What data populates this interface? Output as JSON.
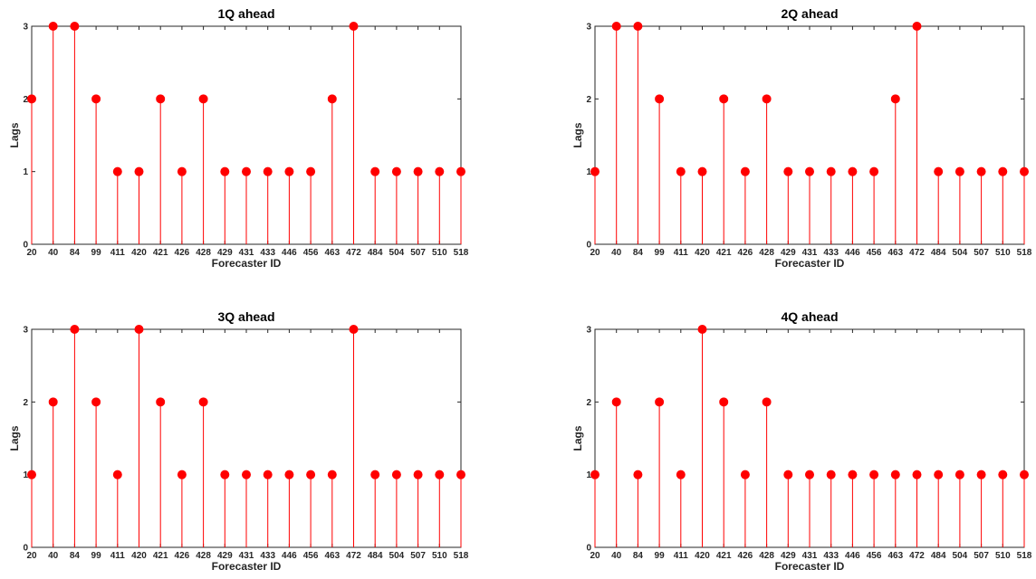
{
  "chart_data": [
    {
      "type": "stem",
      "title": "1Q ahead",
      "xlabel": "Forecaster ID",
      "ylabel": "Lags",
      "categories": [
        "20",
        "40",
        "84",
        "99",
        "411",
        "420",
        "421",
        "426",
        "428",
        "429",
        "431",
        "433",
        "446",
        "456",
        "463",
        "472",
        "484",
        "504",
        "507",
        "510",
        "518"
      ],
      "values": [
        2,
        3,
        3,
        2,
        1,
        1,
        2,
        1,
        2,
        1,
        1,
        1,
        1,
        1,
        2,
        3,
        1,
        1,
        1,
        1,
        1
      ],
      "ylim": [
        0,
        3
      ],
      "yticks": [
        "0",
        "1",
        "2",
        "3"
      ],
      "grid": false,
      "color": "#ff0000"
    },
    {
      "type": "stem",
      "title": "2Q ahead",
      "xlabel": "Forecaster ID",
      "ylabel": "Lags",
      "categories": [
        "20",
        "40",
        "84",
        "99",
        "411",
        "420",
        "421",
        "426",
        "428",
        "429",
        "431",
        "433",
        "446",
        "456",
        "463",
        "472",
        "484",
        "504",
        "507",
        "510",
        "518"
      ],
      "values": [
        1,
        3,
        3,
        2,
        1,
        1,
        2,
        1,
        2,
        1,
        1,
        1,
        1,
        1,
        2,
        3,
        1,
        1,
        1,
        1,
        1
      ],
      "ylim": [
        0,
        3
      ],
      "yticks": [
        "0",
        "1",
        "2",
        "3"
      ],
      "grid": false,
      "color": "#ff0000"
    },
    {
      "type": "stem",
      "title": "3Q ahead",
      "xlabel": "Forecaster ID",
      "ylabel": "Lags",
      "categories": [
        "20",
        "40",
        "84",
        "99",
        "411",
        "420",
        "421",
        "426",
        "428",
        "429",
        "431",
        "433",
        "446",
        "456",
        "463",
        "472",
        "484",
        "504",
        "507",
        "510",
        "518"
      ],
      "values": [
        1,
        2,
        3,
        2,
        1,
        3,
        2,
        1,
        2,
        1,
        1,
        1,
        1,
        1,
        1,
        3,
        1,
        1,
        1,
        1,
        1
      ],
      "ylim": [
        0,
        3
      ],
      "yticks": [
        "0",
        "1",
        "2",
        "3"
      ],
      "grid": false,
      "color": "#ff0000"
    },
    {
      "type": "stem",
      "title": "4Q ahead",
      "xlabel": "Forecaster ID",
      "ylabel": "Lags",
      "categories": [
        "20",
        "40",
        "84",
        "99",
        "411",
        "420",
        "421",
        "426",
        "428",
        "429",
        "431",
        "433",
        "446",
        "456",
        "463",
        "472",
        "484",
        "504",
        "507",
        "510",
        "518"
      ],
      "values": [
        1,
        2,
        1,
        2,
        1,
        3,
        2,
        1,
        2,
        1,
        1,
        1,
        1,
        1,
        1,
        1,
        1,
        1,
        1,
        1,
        1
      ],
      "ylim": [
        0,
        3
      ],
      "yticks": [
        "0",
        "1",
        "2",
        "3"
      ],
      "grid": false,
      "color": "#ff0000"
    }
  ]
}
